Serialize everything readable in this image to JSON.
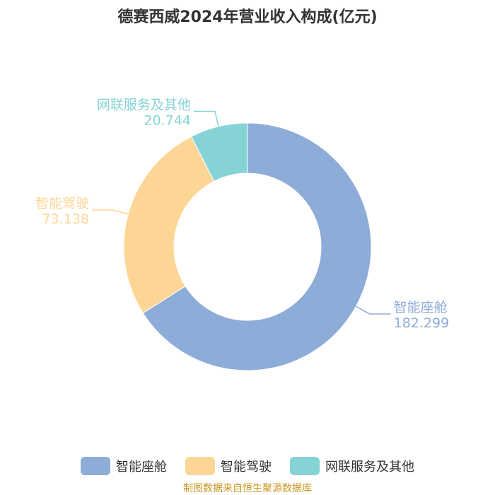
{
  "chart_data": {
    "type": "pie",
    "title": "德赛西威2024年营业收入构成(亿元)",
    "categories": [
      "智能座舱",
      "智能驾驶",
      "网联服务及其他"
    ],
    "values": [
      182.299,
      73.138,
      20.744
    ],
    "value_labels": [
      "182.299",
      "73.138",
      "20.744"
    ],
    "colors": [
      "#8eacd8",
      "#fdd696",
      "#86d3d6"
    ],
    "donut": true,
    "legend_position": "bottom"
  },
  "source_text": "制图数据来自恒生聚源数据库"
}
